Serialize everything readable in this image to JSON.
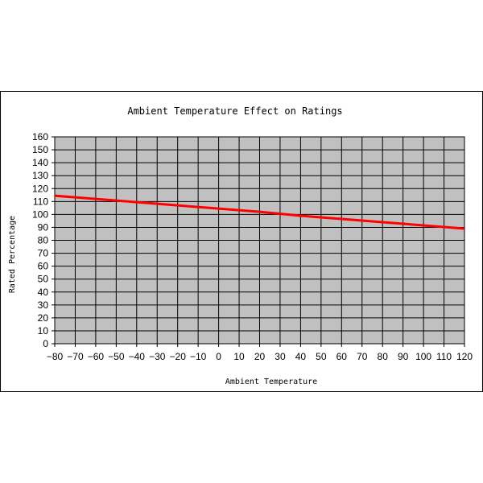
{
  "chart_data": {
    "type": "line",
    "title": "Ambient Temperature Effect on Ratings",
    "xlabel": "Ambient Temperature",
    "ylabel": "Rated Percentage",
    "xlim": [
      -80,
      120
    ],
    "ylim": [
      0,
      160
    ],
    "xticks": [
      -80,
      -70,
      -60,
      -50,
      -40,
      -30,
      -20,
      -10,
      0,
      10,
      20,
      30,
      40,
      50,
      60,
      70,
      80,
      90,
      100,
      110,
      120
    ],
    "yticks": [
      0,
      10,
      20,
      30,
      40,
      50,
      60,
      70,
      80,
      90,
      100,
      110,
      120,
      130,
      140,
      150,
      160
    ],
    "xtick_labels": [
      "−80",
      "−70",
      "−60",
      "−50",
      "−40",
      "−30",
      "−20",
      "−10",
      "0",
      "10",
      "20",
      "30",
      "40",
      "50",
      "60",
      "70",
      "80",
      "90",
      "100",
      "110",
      "120"
    ],
    "grid": true,
    "legend": "none",
    "plot_background": "#C0C0C0",
    "series": [
      {
        "color": "#FF0000",
        "x": [
          -80,
          -60,
          -40,
          -20,
          0,
          20,
          40,
          60,
          80,
          100,
          120
        ],
        "y": [
          114.5,
          112,
          109.5,
          107,
          104.5,
          102,
          99,
          96.5,
          94,
          91.5,
          89
        ]
      }
    ]
  }
}
